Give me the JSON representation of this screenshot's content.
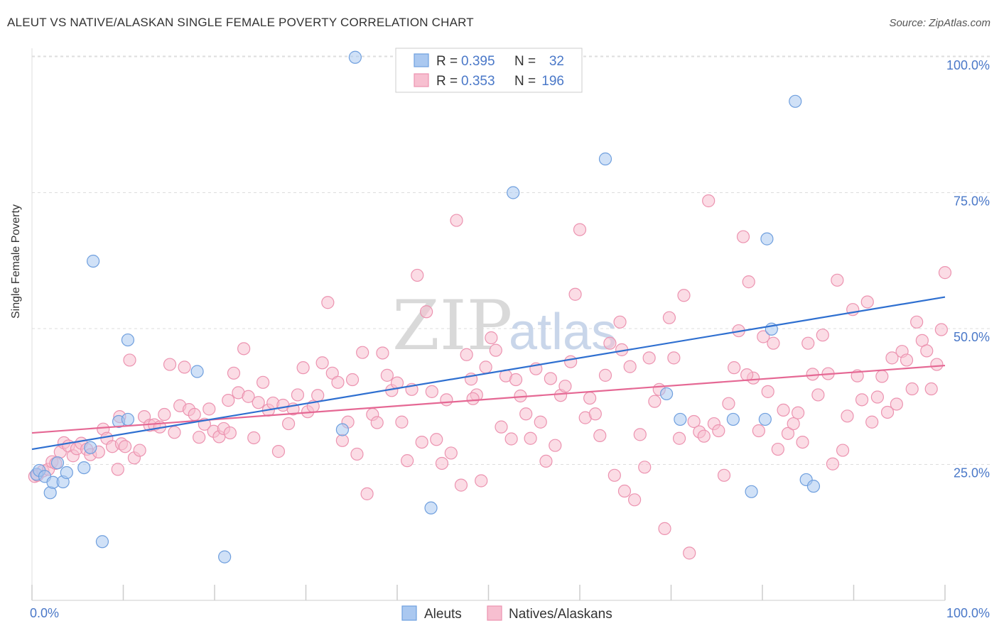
{
  "title": "ALEUT VS NATIVE/ALASKAN SINGLE FEMALE POVERTY CORRELATION CHART",
  "source": "Source: ZipAtlas.com",
  "watermark": {
    "zip": "ZIP",
    "atlas": "atlas"
  },
  "legend": {
    "rows": [
      {
        "r_label": "R = ",
        "r_value": "0.395",
        "n_label": "N = ",
        "n_value": "32"
      },
      {
        "r_label": "R = ",
        "r_value": "0.353",
        "n_label": "N = ",
        "n_value": "196"
      }
    ]
  },
  "colors": {
    "aleut_fill": "#aac8f0",
    "aleut_stroke": "#6f9fde",
    "aleut_line": "#2e6fd0",
    "native_fill": "#f7bfd0",
    "native_stroke": "#ec93b0",
    "native_line": "#e56894",
    "tick": "#4a78c8",
    "grid": "#dddddd"
  },
  "chart_data": {
    "type": "scatter",
    "title": "ALEUT VS NATIVE/ALASKAN SINGLE FEMALE POVERTY CORRELATION CHART",
    "xlabel": "",
    "ylabel": "Single Female Poverty",
    "xlim": [
      0,
      100
    ],
    "ylim": [
      0,
      104
    ],
    "x_tick_labels": [
      "0.0%",
      "100.0%"
    ],
    "y_ticks": [
      25,
      50,
      75,
      100
    ],
    "y_tick_labels": [
      "25.0%",
      "50.0%",
      "75.0%",
      "100.0%"
    ],
    "grid": true,
    "legend_position": "top-center",
    "series": [
      {
        "name": "Aleuts",
        "r": 0.395,
        "n": 32,
        "trend": {
          "x": [
            0,
            100
          ],
          "y": [
            27.8,
            55.8
          ]
        },
        "points": [
          [
            0.5,
            23.2
          ],
          [
            0.8,
            23.9
          ],
          [
            1.4,
            22.8
          ],
          [
            2.0,
            19.8
          ],
          [
            2.3,
            21.7
          ],
          [
            2.8,
            25.3
          ],
          [
            3.4,
            21.8
          ],
          [
            3.8,
            23.5
          ],
          [
            5.7,
            24.4
          ],
          [
            6.4,
            28.1
          ],
          [
            6.7,
            62.4
          ],
          [
            7.7,
            10.8
          ],
          [
            9.5,
            32.9
          ],
          [
            10.5,
            33.3
          ],
          [
            10.5,
            47.9
          ],
          [
            18.1,
            42.1
          ],
          [
            21.1,
            8.0
          ],
          [
            34.0,
            31.4
          ],
          [
            35.4,
            99.9
          ],
          [
            43.7,
            17.0
          ],
          [
            52.7,
            75.0
          ],
          [
            62.8,
            81.2
          ],
          [
            69.5,
            38.0
          ],
          [
            71.0,
            33.3
          ],
          [
            76.8,
            33.3
          ],
          [
            78.8,
            20.0
          ],
          [
            80.3,
            33.3
          ],
          [
            80.5,
            66.5
          ],
          [
            81.0,
            49.9
          ],
          [
            83.6,
            91.8
          ],
          [
            84.8,
            22.2
          ],
          [
            85.6,
            21.0
          ]
        ]
      },
      {
        "name": "Natives/Alaskans",
        "r": 0.353,
        "n": 196,
        "trend": {
          "x": [
            0,
            100
          ],
          "y": [
            30.8,
            43.2
          ]
        },
        "points": [
          [
            0.3,
            22.8
          ],
          [
            0.6,
            23.0
          ],
          [
            1.2,
            23.8
          ],
          [
            1.8,
            24.1
          ],
          [
            2.2,
            25.5
          ],
          [
            2.6,
            25.2
          ],
          [
            3.1,
            27.3
          ],
          [
            3.5,
            29.0
          ],
          [
            4.0,
            28.4
          ],
          [
            4.5,
            26.6
          ],
          [
            4.9,
            27.9
          ],
          [
            5.4,
            28.9
          ],
          [
            6.0,
            27.8
          ],
          [
            6.4,
            26.8
          ],
          [
            7.3,
            27.3
          ],
          [
            7.8,
            31.5
          ],
          [
            8.2,
            29.8
          ],
          [
            8.8,
            28.3
          ],
          [
            9.4,
            24.1
          ],
          [
            9.8,
            28.8
          ],
          [
            10.2,
            28.3
          ],
          [
            10.7,
            44.2
          ],
          [
            11.2,
            26.2
          ],
          [
            11.8,
            27.6
          ],
          [
            12.3,
            33.8
          ],
          [
            12.9,
            32.2
          ],
          [
            13.4,
            32.3
          ],
          [
            14.0,
            31.9
          ],
          [
            14.5,
            34.2
          ],
          [
            15.1,
            43.4
          ],
          [
            15.6,
            30.9
          ],
          [
            16.2,
            35.8
          ],
          [
            16.7,
            42.9
          ],
          [
            17.2,
            35.1
          ],
          [
            17.8,
            34.2
          ],
          [
            18.3,
            30.0
          ],
          [
            18.9,
            32.4
          ],
          [
            19.4,
            35.2
          ],
          [
            19.9,
            31.1
          ],
          [
            20.5,
            30.1
          ],
          [
            21.0,
            31.6
          ],
          [
            21.5,
            36.8
          ],
          [
            22.1,
            41.8
          ],
          [
            22.6,
            38.2
          ],
          [
            23.2,
            46.3
          ],
          [
            23.7,
            37.5
          ],
          [
            24.3,
            29.9
          ],
          [
            24.8,
            36.4
          ],
          [
            25.3,
            40.1
          ],
          [
            25.9,
            35.0
          ],
          [
            26.4,
            36.3
          ],
          [
            27.0,
            27.4
          ],
          [
            27.5,
            35.9
          ],
          [
            28.1,
            32.5
          ],
          [
            28.6,
            35.2
          ],
          [
            29.1,
            37.8
          ],
          [
            29.7,
            42.8
          ],
          [
            30.2,
            34.7
          ],
          [
            30.8,
            35.7
          ],
          [
            31.3,
            37.7
          ],
          [
            31.8,
            43.7
          ],
          [
            32.4,
            54.8
          ],
          [
            32.9,
            41.8
          ],
          [
            33.5,
            40.1
          ],
          [
            34.0,
            29.4
          ],
          [
            34.6,
            32.8
          ],
          [
            35.1,
            40.6
          ],
          [
            35.6,
            26.9
          ],
          [
            36.2,
            45.6
          ],
          [
            36.7,
            19.6
          ],
          [
            37.3,
            34.2
          ],
          [
            37.8,
            32.7
          ],
          [
            38.4,
            45.5
          ],
          [
            38.9,
            41.4
          ],
          [
            39.4,
            38.6
          ],
          [
            40.0,
            40.0
          ],
          [
            40.5,
            32.8
          ],
          [
            41.1,
            25.7
          ],
          [
            41.6,
            38.8
          ],
          [
            42.2,
            59.8
          ],
          [
            42.7,
            29.1
          ],
          [
            43.2,
            53.1
          ],
          [
            43.8,
            38.4
          ],
          [
            44.3,
            29.6
          ],
          [
            44.9,
            25.2
          ],
          [
            45.4,
            36.9
          ],
          [
            45.9,
            27.1
          ],
          [
            46.5,
            69.9
          ],
          [
            47.0,
            21.2
          ],
          [
            47.6,
            45.2
          ],
          [
            48.1,
            40.7
          ],
          [
            48.7,
            37.8
          ],
          [
            49.2,
            22.0
          ],
          [
            49.7,
            42.9
          ],
          [
            50.3,
            48.3
          ],
          [
            50.8,
            46.0
          ],
          [
            51.4,
            31.9
          ],
          [
            51.9,
            41.3
          ],
          [
            52.5,
            29.7
          ],
          [
            53.0,
            40.6
          ],
          [
            53.5,
            37.6
          ],
          [
            54.1,
            34.3
          ],
          [
            54.6,
            29.8
          ],
          [
            55.2,
            42.6
          ],
          [
            55.7,
            32.8
          ],
          [
            56.3,
            25.6
          ],
          [
            56.8,
            40.8
          ],
          [
            57.3,
            28.5
          ],
          [
            57.9,
            37.7
          ],
          [
            58.4,
            39.4
          ],
          [
            59.0,
            43.9
          ],
          [
            59.5,
            56.3
          ],
          [
            60.0,
            68.2
          ],
          [
            60.6,
            33.6
          ],
          [
            61.1,
            37.2
          ],
          [
            61.7,
            34.3
          ],
          [
            62.2,
            30.3
          ],
          [
            62.8,
            41.4
          ],
          [
            63.3,
            47.3
          ],
          [
            63.8,
            23.0
          ],
          [
            64.4,
            51.2
          ],
          [
            64.9,
            20.1
          ],
          [
            65.5,
            43.0
          ],
          [
            66.0,
            18.5
          ],
          [
            66.6,
            30.5
          ],
          [
            67.1,
            24.5
          ],
          [
            67.6,
            44.6
          ],
          [
            68.2,
            36.6
          ],
          [
            68.7,
            38.8
          ],
          [
            69.3,
            13.2
          ],
          [
            69.8,
            52.0
          ],
          [
            70.3,
            44.6
          ],
          [
            70.9,
            29.8
          ],
          [
            71.4,
            56.1
          ],
          [
            72.0,
            8.7
          ],
          [
            72.5,
            32.9
          ],
          [
            73.1,
            31.0
          ],
          [
            73.6,
            30.2
          ],
          [
            74.1,
            73.5
          ],
          [
            74.7,
            32.5
          ],
          [
            75.2,
            31.2
          ],
          [
            75.8,
            23.0
          ],
          [
            76.3,
            36.2
          ],
          [
            76.9,
            42.8
          ],
          [
            77.4,
            49.6
          ],
          [
            77.9,
            66.9
          ],
          [
            78.5,
            58.6
          ],
          [
            79.0,
            40.9
          ],
          [
            79.6,
            31.2
          ],
          [
            80.1,
            48.5
          ],
          [
            80.6,
            38.4
          ],
          [
            81.2,
            47.3
          ],
          [
            81.7,
            27.8
          ],
          [
            82.3,
            35.0
          ],
          [
            82.8,
            30.7
          ],
          [
            83.4,
            32.5
          ],
          [
            83.9,
            34.5
          ],
          [
            84.4,
            29.1
          ],
          [
            85.0,
            47.3
          ],
          [
            85.5,
            41.6
          ],
          [
            86.1,
            37.8
          ],
          [
            86.6,
            48.8
          ],
          [
            87.2,
            41.7
          ],
          [
            87.7,
            25.1
          ],
          [
            88.2,
            58.9
          ],
          [
            88.8,
            27.6
          ],
          [
            89.3,
            33.9
          ],
          [
            89.9,
            53.5
          ],
          [
            90.4,
            41.3
          ],
          [
            90.9,
            36.9
          ],
          [
            91.5,
            54.9
          ],
          [
            92.0,
            32.8
          ],
          [
            92.6,
            37.4
          ],
          [
            93.1,
            41.2
          ],
          [
            93.7,
            34.6
          ],
          [
            94.2,
            44.6
          ],
          [
            94.7,
            36.1
          ],
          [
            95.3,
            45.8
          ],
          [
            95.8,
            44.2
          ],
          [
            96.4,
            38.9
          ],
          [
            96.9,
            51.2
          ],
          [
            97.5,
            47.8
          ],
          [
            98.0,
            45.9
          ],
          [
            98.5,
            38.9
          ],
          [
            99.1,
            43.4
          ],
          [
            99.6,
            49.8
          ],
          [
            100.0,
            60.3
          ],
          [
            9.6,
            33.8
          ],
          [
            21.7,
            30.8
          ],
          [
            48.3,
            37.1
          ],
          [
            64.6,
            46.1
          ],
          [
            78.3,
            41.5
          ]
        ]
      }
    ]
  },
  "bottom_legend": {
    "items": [
      "Aleuts",
      "Natives/Alaskans"
    ]
  }
}
